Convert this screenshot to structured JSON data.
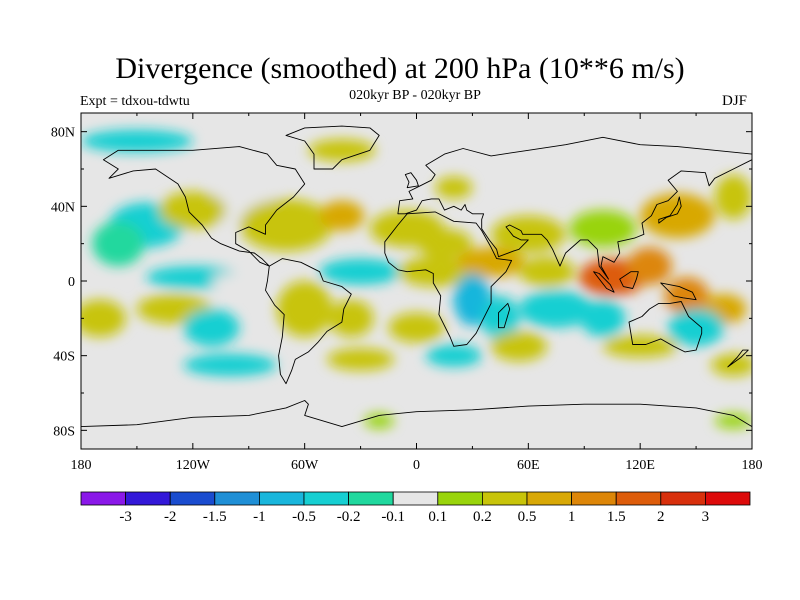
{
  "title": "Divergence (smoothed) at 200 hPa (10**6 m/s)",
  "subtitle": "020kyr BP - 020kyr BP",
  "expt_label": "Expt = tdxou-tdwtu",
  "season": "DJF",
  "lat_labels": [
    "80N",
    "40N",
    "0",
    "40S",
    "80S"
  ],
  "lon_labels": [
    "180",
    "120W",
    "60W",
    "0",
    "60E",
    "120E",
    "180"
  ],
  "colorbar": {
    "labels": [
      "-3",
      "-2",
      "-1.5",
      "-1",
      "-0.5",
      "-0.2",
      "-0.1",
      "0.1",
      "0.2",
      "0.5",
      "1",
      "1.5",
      "2",
      "3"
    ],
    "colors": [
      "#8a18e8",
      "#3318d8",
      "#1a4ccf",
      "#1f8fd6",
      "#19b6dc",
      "#16cfd2",
      "#20d89e",
      "#e6e6e6",
      "#99d40b",
      "#c8c40a",
      "#d8a806",
      "#dd8608",
      "#dd5c0a",
      "#d8300c",
      "#dd0a0a"
    ]
  },
  "color_ids": {
    "neutral": "#e6e6e6",
    "land_outline": "#000000"
  },
  "map_patches": [
    {
      "lon": -95,
      "lat": 40,
      "rx": 22,
      "ry": 10,
      "c": 7
    },
    {
      "lon": -145,
      "lat": 30,
      "rx": 20,
      "ry": 12,
      "c": 5
    },
    {
      "lon": -160,
      "lat": 20,
      "rx": 14,
      "ry": 12,
      "c": 6
    },
    {
      "lon": -120,
      "lat": 38,
      "rx": 18,
      "ry": 10,
      "c": 9
    },
    {
      "lon": -70,
      "lat": 30,
      "rx": 25,
      "ry": 14,
      "c": 9
    },
    {
      "lon": -40,
      "lat": 35,
      "rx": 12,
      "ry": 8,
      "c": 10
    },
    {
      "lon": -5,
      "lat": 28,
      "rx": 20,
      "ry": 10,
      "c": 9
    },
    {
      "lon": 15,
      "lat": 20,
      "rx": 15,
      "ry": 8,
      "c": 9
    },
    {
      "lon": 60,
      "lat": 25,
      "rx": 20,
      "ry": 10,
      "c": 9
    },
    {
      "lon": 100,
      "lat": 28,
      "rx": 18,
      "ry": 10,
      "c": 8
    },
    {
      "lon": 140,
      "lat": 35,
      "rx": 20,
      "ry": 12,
      "c": 10
    },
    {
      "lon": 170,
      "lat": 45,
      "rx": 10,
      "ry": 12,
      "c": 9
    },
    {
      "lon": -150,
      "lat": 75,
      "rx": 30,
      "ry": 6,
      "c": 5
    },
    {
      "lon": -40,
      "lat": 70,
      "rx": 18,
      "ry": 6,
      "c": 9
    },
    {
      "lon": 20,
      "lat": 50,
      "rx": 10,
      "ry": 6,
      "c": 9
    },
    {
      "lon": -30,
      "lat": 5,
      "rx": 22,
      "ry": 7,
      "c": 5
    },
    {
      "lon": 10,
      "lat": 5,
      "rx": 20,
      "ry": 8,
      "c": 9
    },
    {
      "lon": 40,
      "lat": 10,
      "rx": 18,
      "ry": 8,
      "c": 10
    },
    {
      "lon": 70,
      "lat": 5,
      "rx": 15,
      "ry": 8,
      "c": 9
    },
    {
      "lon": 105,
      "lat": 2,
      "rx": 18,
      "ry": 10,
      "c": 12
    },
    {
      "lon": 125,
      "lat": 8,
      "rx": 12,
      "ry": 10,
      "c": 11
    },
    {
      "lon": 145,
      "lat": -8,
      "rx": 12,
      "ry": 10,
      "c": 11
    },
    {
      "lon": 165,
      "lat": -15,
      "rx": 12,
      "ry": 8,
      "c": 10
    },
    {
      "lon": -120,
      "lat": 2,
      "rx": 25,
      "ry": 6,
      "c": 5
    },
    {
      "lon": -95,
      "lat": 0,
      "rx": 15,
      "ry": 4,
      "c": 7
    },
    {
      "lon": 30,
      "lat": -10,
      "rx": 10,
      "ry": 14,
      "c": 4
    },
    {
      "lon": 45,
      "lat": -20,
      "rx": 10,
      "ry": 12,
      "c": 5
    },
    {
      "lon": 75,
      "lat": -15,
      "rx": 20,
      "ry": 10,
      "c": 5
    },
    {
      "lon": 100,
      "lat": -20,
      "rx": 12,
      "ry": 10,
      "c": 5
    },
    {
      "lon": 150,
      "lat": -25,
      "rx": 15,
      "ry": 10,
      "c": 5
    },
    {
      "lon": -170,
      "lat": -20,
      "rx": 14,
      "ry": 10,
      "c": 9
    },
    {
      "lon": -130,
      "lat": -15,
      "rx": 20,
      "ry": 8,
      "c": 9
    },
    {
      "lon": -110,
      "lat": -25,
      "rx": 15,
      "ry": 10,
      "c": 5
    },
    {
      "lon": -60,
      "lat": -15,
      "rx": 15,
      "ry": 15,
      "c": 9
    },
    {
      "lon": -35,
      "lat": -20,
      "rx": 12,
      "ry": 10,
      "c": 9
    },
    {
      "lon": 0,
      "lat": -25,
      "rx": 15,
      "ry": 8,
      "c": 9
    },
    {
      "lon": 55,
      "lat": -35,
      "rx": 15,
      "ry": 8,
      "c": 9
    },
    {
      "lon": 120,
      "lat": -35,
      "rx": 20,
      "ry": 6,
      "c": 9
    },
    {
      "lon": -100,
      "lat": -45,
      "rx": 25,
      "ry": 6,
      "c": 5
    },
    {
      "lon": -30,
      "lat": -42,
      "rx": 18,
      "ry": 6,
      "c": 9
    },
    {
      "lon": 20,
      "lat": -40,
      "rx": 15,
      "ry": 6,
      "c": 5
    },
    {
      "lon": 170,
      "lat": -45,
      "rx": 12,
      "ry": 6,
      "c": 9
    },
    {
      "lon": -20,
      "lat": -75,
      "rx": 8,
      "ry": 4,
      "c": 8
    },
    {
      "lon": 170,
      "lat": -75,
      "rx": 10,
      "ry": 4,
      "c": 8
    }
  ],
  "continents": [
    {
      "name": "north-america",
      "pts": [
        [
          -168,
          65
        ],
        [
          -160,
          70
        ],
        [
          -140,
          70
        ],
        [
          -120,
          70
        ],
        [
          -95,
          72
        ],
        [
          -80,
          68
        ],
        [
          -75,
          62
        ],
        [
          -65,
          60
        ],
        [
          -60,
          52
        ],
        [
          -66,
          45
        ],
        [
          -75,
          38
        ],
        [
          -81,
          30
        ],
        [
          -81,
          25
        ],
        [
          -90,
          29
        ],
        [
          -97,
          26
        ],
        [
          -97,
          20
        ],
        [
          -90,
          16
        ],
        [
          -84,
          10
        ],
        [
          -79,
          8
        ],
        [
          -83,
          12
        ],
        [
          -87,
          15
        ],
        [
          -95,
          16
        ],
        [
          -105,
          20
        ],
        [
          -110,
          23
        ],
        [
          -115,
          30
        ],
        [
          -122,
          37
        ],
        [
          -124,
          45
        ],
        [
          -128,
          52
        ],
        [
          -140,
          60
        ],
        [
          -152,
          59
        ],
        [
          -165,
          55
        ],
        [
          -160,
          60
        ],
        [
          -168,
          65
        ]
      ]
    },
    {
      "name": "greenland",
      "pts": [
        [
          -55,
          60
        ],
        [
          -45,
          60
        ],
        [
          -40,
          65
        ],
        [
          -25,
          70
        ],
        [
          -20,
          78
        ],
        [
          -25,
          82
        ],
        [
          -40,
          83
        ],
        [
          -60,
          82
        ],
        [
          -70,
          78
        ],
        [
          -60,
          75
        ],
        [
          -55,
          68
        ],
        [
          -55,
          60
        ]
      ]
    },
    {
      "name": "south-america",
      "pts": [
        [
          -79,
          8
        ],
        [
          -72,
          12
        ],
        [
          -62,
          10
        ],
        [
          -52,
          5
        ],
        [
          -50,
          0
        ],
        [
          -40,
          -3
        ],
        [
          -35,
          -7
        ],
        [
          -39,
          -15
        ],
        [
          -40,
          -22
        ],
        [
          -48,
          -27
        ],
        [
          -53,
          -33
        ],
        [
          -58,
          -38
        ],
        [
          -65,
          -42
        ],
        [
          -67,
          -48
        ],
        [
          -70,
          -55
        ],
        [
          -73,
          -50
        ],
        [
          -74,
          -40
        ],
        [
          -72,
          -30
        ],
        [
          -71,
          -18
        ],
        [
          -76,
          -13
        ],
        [
          -81,
          -5
        ],
        [
          -80,
          0
        ],
        [
          -79,
          8
        ]
      ]
    },
    {
      "name": "africa",
      "pts": [
        [
          -17,
          15
        ],
        [
          -17,
          21
        ],
        [
          -10,
          30
        ],
        [
          -5,
          36
        ],
        [
          10,
          37
        ],
        [
          20,
          32
        ],
        [
          32,
          31
        ],
        [
          35,
          27
        ],
        [
          40,
          18
        ],
        [
          43,
          12
        ],
        [
          51,
          11
        ],
        [
          48,
          5
        ],
        [
          40,
          -3
        ],
        [
          40,
          -12
        ],
        [
          35,
          -22
        ],
        [
          32,
          -28
        ],
        [
          27,
          -34
        ],
        [
          20,
          -35
        ],
        [
          18,
          -30
        ],
        [
          12,
          -18
        ],
        [
          13,
          -8
        ],
        [
          9,
          -1
        ],
        [
          9,
          4
        ],
        [
          5,
          6
        ],
        [
          -5,
          5
        ],
        [
          -10,
          6
        ],
        [
          -15,
          10
        ],
        [
          -17,
          15
        ]
      ]
    },
    {
      "name": "eurasia",
      "pts": [
        [
          -10,
          36
        ],
        [
          -9,
          43
        ],
        [
          -2,
          44
        ],
        [
          -4,
          48
        ],
        [
          2,
          51
        ],
        [
          8,
          54
        ],
        [
          10,
          57
        ],
        [
          5,
          62
        ],
        [
          15,
          68
        ],
        [
          25,
          71
        ],
        [
          40,
          67
        ],
        [
          60,
          70
        ],
        [
          80,
          73
        ],
        [
          100,
          77
        ],
        [
          120,
          73
        ],
        [
          140,
          72
        ],
        [
          160,
          70
        ],
        [
          180,
          68
        ],
        [
          180,
          65
        ],
        [
          170,
          60
        ],
        [
          160,
          55
        ],
        [
          157,
          51
        ],
        [
          155,
          58
        ],
        [
          142,
          59
        ],
        [
          135,
          54
        ],
        [
          140,
          48
        ],
        [
          135,
          43
        ],
        [
          129,
          41
        ],
        [
          126,
          35
        ],
        [
          121,
          31
        ],
        [
          122,
          25
        ],
        [
          117,
          23
        ],
        [
          108,
          21
        ],
        [
          109,
          15
        ],
        [
          106,
          10
        ],
        [
          100,
          13
        ],
        [
          99,
          8
        ],
        [
          103,
          1
        ],
        [
          98,
          8
        ],
        [
          97,
          17
        ],
        [
          92,
          22
        ],
        [
          88,
          22
        ],
        [
          80,
          15
        ],
        [
          77,
          8
        ],
        [
          73,
          17
        ],
        [
          70,
          22
        ],
        [
          67,
          25
        ],
        [
          57,
          25
        ],
        [
          56,
          27
        ],
        [
          50,
          30
        ],
        [
          48,
          29
        ],
        [
          52,
          24
        ],
        [
          56,
          22
        ],
        [
          60,
          22
        ],
        [
          55,
          17
        ],
        [
          52,
          16
        ],
        [
          44,
          13
        ],
        [
          43,
          17
        ],
        [
          39,
          22
        ],
        [
          35,
          28
        ],
        [
          35,
          33
        ],
        [
          36,
          36
        ],
        [
          30,
          36
        ],
        [
          27,
          38
        ],
        [
          26,
          41
        ],
        [
          24,
          38
        ],
        [
          20,
          40
        ],
        [
          15,
          38
        ],
        [
          12,
          44
        ],
        [
          8,
          44
        ],
        [
          3,
          43
        ],
        [
          0,
          38
        ],
        [
          -6,
          36
        ],
        [
          -10,
          36
        ]
      ]
    },
    {
      "name": "australia",
      "pts": [
        [
          114,
          -22
        ],
        [
          116,
          -34
        ],
        [
          123,
          -34
        ],
        [
          131,
          -31
        ],
        [
          138,
          -35
        ],
        [
          144,
          -38
        ],
        [
          150,
          -37
        ],
        [
          153,
          -28
        ],
        [
          153,
          -25
        ],
        [
          146,
          -19
        ],
        [
          142,
          -11
        ],
        [
          136,
          -12
        ],
        [
          130,
          -12
        ],
        [
          125,
          -15
        ],
        [
          121,
          -19
        ],
        [
          114,
          -22
        ]
      ]
    },
    {
      "name": "antarctica",
      "pts": [
        [
          -180,
          -78
        ],
        [
          -150,
          -77
        ],
        [
          -120,
          -73
        ],
        [
          -90,
          -72
        ],
        [
          -70,
          -68
        ],
        [
          -60,
          -64
        ],
        [
          -58,
          -66
        ],
        [
          -60,
          -72
        ],
        [
          -40,
          -78
        ],
        [
          -20,
          -72
        ],
        [
          0,
          -70
        ],
        [
          30,
          -69
        ],
        [
          60,
          -67
        ],
        [
          90,
          -66
        ],
        [
          120,
          -66
        ],
        [
          150,
          -68
        ],
        [
          170,
          -72
        ],
        [
          180,
          -78
        ],
        [
          180,
          -90
        ],
        [
          -180,
          -90
        ],
        [
          -180,
          -78
        ]
      ]
    },
    {
      "name": "madagascar",
      "pts": [
        [
          44,
          -25
        ],
        [
          47,
          -25
        ],
        [
          50,
          -15
        ],
        [
          49,
          -12
        ],
        [
          44,
          -17
        ],
        [
          44,
          -25
        ]
      ]
    },
    {
      "name": "borneo",
      "pts": [
        [
          109,
          1
        ],
        [
          115,
          5
        ],
        [
          119,
          5
        ],
        [
          118,
          1
        ],
        [
          116,
          -4
        ],
        [
          111,
          -3
        ],
        [
          109,
          1
        ]
      ]
    },
    {
      "name": "sumatra",
      "pts": [
        [
          95,
          5
        ],
        [
          98,
          4
        ],
        [
          104,
          -2
        ],
        [
          106,
          -6
        ],
        [
          102,
          -4
        ],
        [
          95,
          5
        ]
      ]
    },
    {
      "name": "new-guinea",
      "pts": [
        [
          131,
          -1
        ],
        [
          141,
          -3
        ],
        [
          148,
          -6
        ],
        [
          150,
          -10
        ],
        [
          143,
          -9
        ],
        [
          138,
          -8
        ],
        [
          131,
          -1
        ]
      ]
    },
    {
      "name": "japan",
      "pts": [
        [
          130,
          31
        ],
        [
          134,
          34
        ],
        [
          140,
          36
        ],
        [
          142,
          40
        ],
        [
          141,
          45
        ],
        [
          140,
          41
        ],
        [
          136,
          35
        ],
        [
          130,
          33
        ],
        [
          130,
          31
        ]
      ]
    },
    {
      "name": "british-isles",
      "pts": [
        [
          -5,
          50
        ],
        [
          1,
          51
        ],
        [
          0,
          54
        ],
        [
          -3,
          58
        ],
        [
          -6,
          57
        ],
        [
          -4,
          53
        ],
        [
          -5,
          50
        ]
      ]
    },
    {
      "name": "new-zealand",
      "pts": [
        [
          167,
          -46
        ],
        [
          174,
          -41
        ],
        [
          178,
          -37
        ],
        [
          175,
          -37
        ],
        [
          172,
          -41
        ],
        [
          167,
          -46
        ]
      ]
    }
  ]
}
